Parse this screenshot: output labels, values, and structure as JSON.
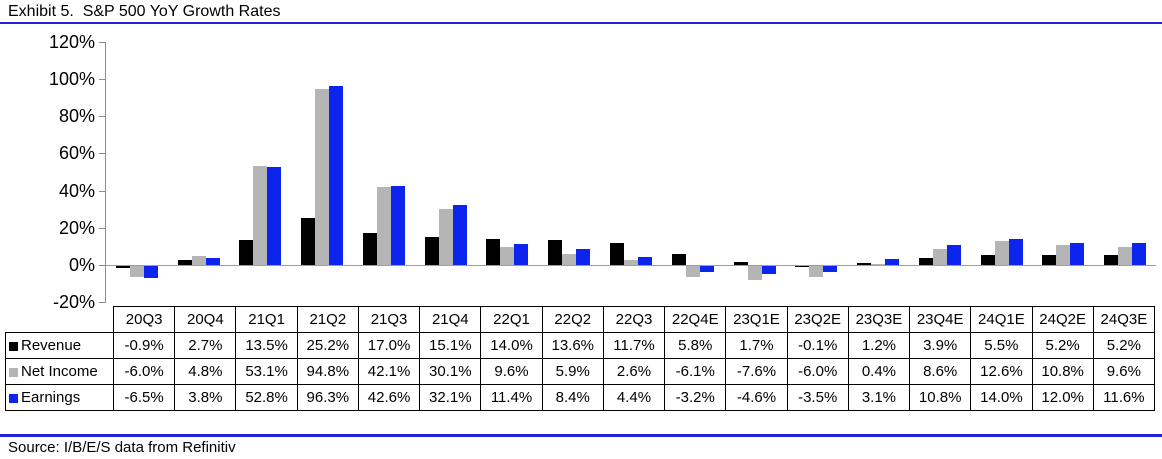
{
  "title": "Exhibit 5.  S&P 500 YoY Growth Rates",
  "source": "Source: I/B/E/S data from Refinitiv",
  "colors": {
    "revenue": "#000000",
    "net_income": "#B5B5B5",
    "earnings": "#0D23EE",
    "rule_line": "#2222DD",
    "axis_line": "#8C8C8C",
    "zero_line": "#9E9E9E",
    "table_border": "#000000"
  },
  "y_axis": {
    "tick_labels": [
      "120%",
      "100%",
      "80%",
      "60%",
      "40%",
      "20%",
      "0%",
      "-20%"
    ],
    "max": 120,
    "min": -20
  },
  "chart_data": {
    "type": "bar",
    "title": "Exhibit 5.  S&P 500 YoY Growth Rates",
    "xlabel": "",
    "ylabel": "",
    "ylim": [
      -20,
      120
    ],
    "grid": "zero-line-only",
    "legend_position": "table-rows-left",
    "categories": [
      "20Q3",
      "20Q4",
      "21Q1",
      "21Q2",
      "21Q3",
      "21Q4",
      "22Q1",
      "22Q2",
      "22Q3",
      "22Q4E",
      "23Q1E",
      "23Q2E",
      "23Q3E",
      "23Q4E",
      "24Q1E",
      "24Q2E",
      "24Q3E"
    ],
    "series": [
      {
        "name": "Revenue",
        "color": "#000000",
        "values": [
          -0.9,
          2.7,
          13.5,
          25.2,
          17.0,
          15.1,
          14.0,
          13.6,
          11.7,
          5.8,
          1.7,
          -0.1,
          1.2,
          3.9,
          5.5,
          5.2,
          5.2
        ]
      },
      {
        "name": "Net Income",
        "color": "#B5B5B5",
        "values": [
          -6.0,
          4.8,
          53.1,
          94.8,
          42.1,
          30.1,
          9.6,
          5.9,
          2.6,
          -6.1,
          -7.6,
          -6.0,
          0.4,
          8.6,
          12.6,
          10.8,
          9.6
        ]
      },
      {
        "name": "Earnings",
        "color": "#0D23EE",
        "values": [
          -6.5,
          3.8,
          52.8,
          96.3,
          42.6,
          32.1,
          11.4,
          8.4,
          4.4,
          -3.2,
          -4.6,
          -3.5,
          3.1,
          10.8,
          14.0,
          12.0,
          11.6
        ]
      }
    ]
  },
  "table": {
    "rows": [
      {
        "label": "Revenue",
        "marker_color": "#000000",
        "cells": [
          "-0.9%",
          "2.7%",
          "13.5%",
          "25.2%",
          "17.0%",
          "15.1%",
          "14.0%",
          "13.6%",
          "11.7%",
          "5.8%",
          "1.7%",
          "-0.1%",
          "1.2%",
          "3.9%",
          "5.5%",
          "5.2%",
          "5.2%"
        ]
      },
      {
        "label": "Net Income",
        "marker_color": "#B5B5B5",
        "cells": [
          "-6.0%",
          "4.8%",
          "53.1%",
          "94.8%",
          "42.1%",
          "30.1%",
          "9.6%",
          "5.9%",
          "2.6%",
          "-6.1%",
          "-7.6%",
          "-6.0%",
          "0.4%",
          "8.6%",
          "12.6%",
          "10.8%",
          "9.6%"
        ]
      },
      {
        "label": "Earnings",
        "marker_color": "#0D23EE",
        "cells": [
          "-6.5%",
          "3.8%",
          "52.8%",
          "96.3%",
          "42.6%",
          "32.1%",
          "11.4%",
          "8.4%",
          "4.4%",
          "-3.2%",
          "-4.6%",
          "-3.5%",
          "3.1%",
          "10.8%",
          "14.0%",
          "12.0%",
          "11.6%"
        ]
      }
    ]
  }
}
